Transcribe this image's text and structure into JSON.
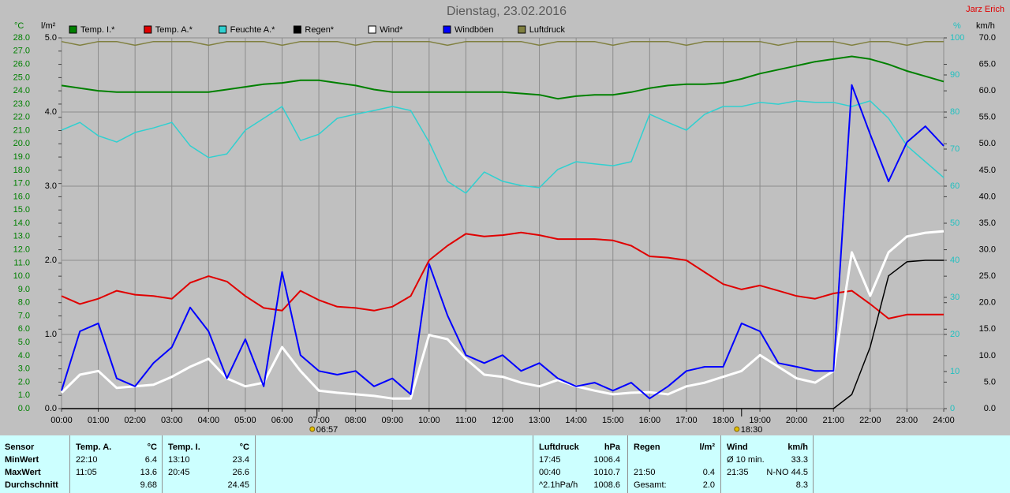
{
  "chart_data": {
    "type": "line",
    "title": "Dienstag, 23.02.2016",
    "author": "Jarz Erich",
    "ylabel": "°C",
    "y2label": "l/m²",
    "y3label": "%",
    "y4label": "km/h",
    "grid": true,
    "xlim": [
      0,
      24
    ],
    "xticks": [
      {
        "value": 0,
        "label": "00:00"
      },
      {
        "value": 1,
        "label": "01:00"
      },
      {
        "value": 2,
        "label": "02:00"
      },
      {
        "value": 3,
        "label": "03:00"
      },
      {
        "value": 4,
        "label": "04:00"
      },
      {
        "value": 5,
        "label": "05:00"
      },
      {
        "value": 6,
        "label": "06:00"
      },
      {
        "value": 7,
        "label": "07:00"
      },
      {
        "value": 8,
        "label": "08:00"
      },
      {
        "value": 9,
        "label": "09:00"
      },
      {
        "value": 10,
        "label": "10:00"
      },
      {
        "value": 11,
        "label": "11:00"
      },
      {
        "value": 12,
        "label": "12:00"
      },
      {
        "value": 13,
        "label": "13:00"
      },
      {
        "value": 14,
        "label": "14:00"
      },
      {
        "value": 15,
        "label": "15:00"
      },
      {
        "value": 16,
        "label": "16:00"
      },
      {
        "value": 17,
        "label": "17:00"
      },
      {
        "value": 18,
        "label": "18:00"
      },
      {
        "value": 19,
        "label": "19:00"
      },
      {
        "value": 20,
        "label": "20:00"
      },
      {
        "value": 21,
        "label": "21:00"
      },
      {
        "value": 22,
        "label": "22:00"
      },
      {
        "value": 23,
        "label": "23:00"
      },
      {
        "value": 24,
        "label": "24:00"
      }
    ],
    "ylim": [
      0,
      28
    ],
    "yticks": [
      {
        "value": 0,
        "label": "0.0"
      },
      {
        "value": 1,
        "label": "1.0"
      },
      {
        "value": 2,
        "label": "2.0"
      },
      {
        "value": 3,
        "label": "3.0"
      },
      {
        "value": 4,
        "label": "4.0"
      },
      {
        "value": 5,
        "label": "5.0"
      },
      {
        "value": 6,
        "label": "6.0"
      },
      {
        "value": 7,
        "label": "7.0"
      },
      {
        "value": 8,
        "label": "8.0"
      },
      {
        "value": 9,
        "label": "9.0"
      },
      {
        "value": 10,
        "label": "10.0"
      },
      {
        "value": 11,
        "label": "11.0"
      },
      {
        "value": 12,
        "label": "12.0"
      },
      {
        "value": 13,
        "label": "13.0"
      },
      {
        "value": 14,
        "label": "14.0"
      },
      {
        "value": 15,
        "label": "15.0"
      },
      {
        "value": 16,
        "label": "16.0"
      },
      {
        "value": 17,
        "label": "17.0"
      },
      {
        "value": 18,
        "label": "18.0"
      },
      {
        "value": 19,
        "label": "19.0"
      },
      {
        "value": 20,
        "label": "20.0"
      },
      {
        "value": 21,
        "label": "21.0"
      },
      {
        "value": 22,
        "label": "22.0"
      },
      {
        "value": 23,
        "label": "23.0"
      },
      {
        "value": 24,
        "label": "24.0"
      },
      {
        "value": 25,
        "label": "25.0"
      },
      {
        "value": 26,
        "label": "26.0"
      },
      {
        "value": 27,
        "label": "27.0"
      },
      {
        "value": 28,
        "label": "28.0"
      }
    ],
    "y2lim": [
      0,
      5
    ],
    "y2ticks": [
      {
        "value": 0,
        "label": "0.0"
      },
      {
        "value": 1,
        "label": "1.0"
      },
      {
        "value": 2,
        "label": "2.0"
      },
      {
        "value": 3,
        "label": "3.0"
      },
      {
        "value": 4,
        "label": "4.0"
      },
      {
        "value": 5,
        "label": "5.0"
      }
    ],
    "y3lim": [
      0,
      100
    ],
    "y3ticks": [
      0,
      10,
      20,
      30,
      40,
      50,
      60,
      70,
      80,
      90,
      100
    ],
    "y4lim": [
      0,
      70
    ],
    "y4ticks": [
      {
        "value": 0,
        "label": "0.0"
      },
      {
        "value": 5,
        "label": "5.0"
      },
      {
        "value": 10,
        "label": "10.0"
      },
      {
        "value": 15,
        "label": "15.0"
      },
      {
        "value": 20,
        "label": "20.0"
      },
      {
        "value": 25,
        "label": "25.0"
      },
      {
        "value": 30,
        "label": "30.0"
      },
      {
        "value": 35,
        "label": "35.0"
      },
      {
        "value": 40,
        "label": "40.0"
      },
      {
        "value": 45,
        "label": "45.0"
      },
      {
        "value": 50,
        "label": "50.0"
      },
      {
        "value": 55,
        "label": "55.0"
      },
      {
        "value": 60,
        "label": "60.0"
      },
      {
        "value": 65,
        "label": "65.0"
      },
      {
        "value": 70,
        "label": "70.0"
      }
    ],
    "x": [
      0,
      0.5,
      1,
      1.5,
      2,
      2.5,
      3,
      3.5,
      4,
      4.5,
      5,
      5.5,
      6,
      6.5,
      7,
      7.5,
      8,
      8.5,
      9,
      9.5,
      10,
      10.5,
      11,
      11.5,
      12,
      12.5,
      13,
      13.5,
      14,
      14.5,
      15,
      15.5,
      16,
      16.5,
      17,
      17.5,
      18,
      18.5,
      19,
      19.5,
      20,
      20.5,
      21,
      21.5,
      22,
      22.5,
      23,
      23.5,
      24
    ],
    "series": [
      {
        "name": "Temp. I.*",
        "color": "#008000",
        "axis": "y",
        "width": 2,
        "values": [
          24.4,
          24.2,
          24.0,
          23.9,
          23.9,
          23.9,
          23.9,
          23.9,
          23.9,
          24.1,
          24.3,
          24.5,
          24.6,
          24.8,
          24.8,
          24.6,
          24.4,
          24.1,
          23.9,
          23.9,
          23.9,
          23.9,
          23.9,
          23.9,
          23.9,
          23.8,
          23.7,
          23.4,
          23.6,
          23.7,
          23.7,
          23.9,
          24.2,
          24.4,
          24.5,
          24.5,
          24.6,
          24.9,
          25.3,
          25.6,
          25.9,
          26.2,
          26.4,
          26.6,
          26.4,
          26.0,
          25.5,
          25.1,
          24.7
        ]
      },
      {
        "name": "Temp. A.*",
        "color": "#e00000",
        "axis": "y",
        "width": 2,
        "values": [
          8.5,
          7.9,
          8.3,
          8.9,
          8.6,
          8.5,
          8.3,
          9.5,
          10.0,
          9.6,
          8.5,
          7.6,
          7.4,
          8.9,
          8.2,
          7.7,
          7.6,
          7.4,
          7.7,
          8.5,
          11.2,
          12.3,
          13.2,
          13.0,
          13.1,
          13.3,
          13.1,
          12.8,
          12.8,
          12.8,
          12.7,
          12.3,
          11.5,
          11.4,
          11.2,
          10.3,
          9.4,
          9.0,
          9.3,
          8.9,
          8.5,
          8.3,
          8.7,
          8.9,
          7.9,
          6.8,
          7.1,
          7.1,
          7.1
        ]
      },
      {
        "name": "Feuchte A.*",
        "color": "#30d0d0",
        "axis": "y3",
        "width": 1.5,
        "values": [
          75.1,
          77.2,
          73.6,
          71.9,
          74.5,
          75.7,
          77.2,
          70.9,
          67.7,
          68.7,
          75.1,
          78.3,
          81.5,
          72.3,
          74.0,
          78.3,
          79.4,
          80.4,
          81.5,
          80.4,
          71.9,
          61.3,
          58.1,
          63.8,
          61.3,
          60.2,
          59.6,
          64.5,
          66.6,
          66.0,
          65.5,
          66.6,
          79.4,
          77.2,
          75.1,
          79.4,
          81.5,
          81.5,
          82.6,
          82.1,
          83.0,
          82.6,
          82.6,
          81.5,
          83.0,
          78.3,
          70.9,
          66.6,
          62.3
        ]
      },
      {
        "name": "Regen*",
        "color": "#000000",
        "axis": "y2",
        "width": 1.5,
        "values": [
          0,
          0,
          0,
          0,
          0,
          0,
          0,
          0,
          0,
          0,
          0,
          0,
          0,
          0,
          0,
          0,
          0,
          0,
          0,
          0,
          0,
          0,
          0,
          0,
          0,
          0,
          0,
          0,
          0,
          0,
          0,
          0,
          0,
          0,
          0,
          0,
          0,
          0,
          0,
          0,
          0,
          0,
          0,
          0.19,
          0.83,
          1.79,
          1.98,
          2.0,
          2.0
        ]
      },
      {
        "name": "Wind*",
        "color": "#ffffff",
        "axis": "y4",
        "width": 3,
        "values": [
          3.0,
          6.4,
          7.1,
          3.9,
          4.2,
          4.5,
          6.0,
          7.9,
          9.4,
          5.7,
          4.2,
          4.9,
          11.6,
          7.1,
          3.4,
          3.0,
          2.7,
          2.4,
          1.9,
          1.9,
          13.9,
          13.1,
          9.4,
          6.4,
          6.0,
          4.9,
          4.2,
          5.4,
          4.2,
          3.4,
          2.7,
          3.0,
          3.1,
          2.7,
          4.2,
          4.9,
          6.0,
          7.1,
          10.1,
          7.9,
          5.7,
          4.9,
          7.1,
          29.5,
          21.3,
          29.5,
          32.5,
          33.2,
          33.5
        ]
      },
      {
        "name": "Windböen",
        "color": "#0000ff",
        "axis": "y4",
        "width": 2,
        "values": [
          3.4,
          14.6,
          16.1,
          5.7,
          4.2,
          8.6,
          11.6,
          19.1,
          14.6,
          5.7,
          13.1,
          4.2,
          25.8,
          10.1,
          7.1,
          6.4,
          7.1,
          4.2,
          5.7,
          2.7,
          27.3,
          17.6,
          10.1,
          8.6,
          10.1,
          7.1,
          8.6,
          5.7,
          4.2,
          4.9,
          3.4,
          4.9,
          1.9,
          4.2,
          7.1,
          7.9,
          7.9,
          16.1,
          14.6,
          8.6,
          7.9,
          7.1,
          7.1,
          61.1,
          51.8,
          42.9,
          50.3,
          53.3,
          49.6
        ]
      },
      {
        "name": "Luftdruck",
        "color": "#808040",
        "axis": "y3",
        "width": 1.5,
        "values": [
          99,
          98,
          99,
          99,
          98,
          99,
          99,
          99,
          98,
          99,
          99,
          99,
          98,
          99,
          99,
          99,
          98,
          99,
          99,
          99,
          99,
          98,
          99,
          99,
          99,
          99,
          98,
          99,
          99,
          99,
          98,
          99,
          99,
          99,
          98,
          99,
          99,
          99,
          99,
          98,
          99,
          99,
          99,
          98,
          99,
          99,
          98,
          99,
          99
        ]
      }
    ],
    "annotations": [
      {
        "x": 6.95,
        "label": "06:57"
      },
      {
        "x": 18.5,
        "label": "18:30"
      }
    ]
  },
  "stats": {
    "sensor": [
      "Sensor",
      "MinWert",
      "MaxWert",
      "Durchschnitt"
    ],
    "panels": [
      {
        "header": "Temp. A.",
        "unit": "°C",
        "left": 88,
        "rows": [
          [
            "22:10",
            "6.4"
          ],
          [
            "11:05",
            "13.6"
          ],
          [
            null,
            "9.68"
          ]
        ]
      },
      {
        "header": "Temp. I.",
        "unit": "°C",
        "left": 205,
        "rows": [
          [
            "13:10",
            "23.4"
          ],
          [
            "20:45",
            "26.6"
          ],
          [
            null,
            "24.45"
          ]
        ]
      },
      {
        "header": "Luftdruck",
        "unit": "hPa",
        "left": 675,
        "rows": [
          [
            "17:45",
            "1006.4"
          ],
          [
            "00:40",
            "1010.7"
          ],
          [
            "^2.1hPa/h",
            "1008.6"
          ]
        ]
      },
      {
        "header": "Regen",
        "unit": "l/m²",
        "left": 795,
        "rows": [
          null,
          [
            "21:50",
            "0.4"
          ],
          [
            "Gesamt:",
            "2.0"
          ]
        ]
      },
      {
        "header": "Wind",
        "unit": "km/h",
        "left": 913,
        "rows": [
          [
            "Ø 10 min.",
            "33.3"
          ],
          [
            "21:35",
            "N-NO 44.5"
          ],
          [
            null,
            "8.3"
          ]
        ]
      }
    ]
  }
}
